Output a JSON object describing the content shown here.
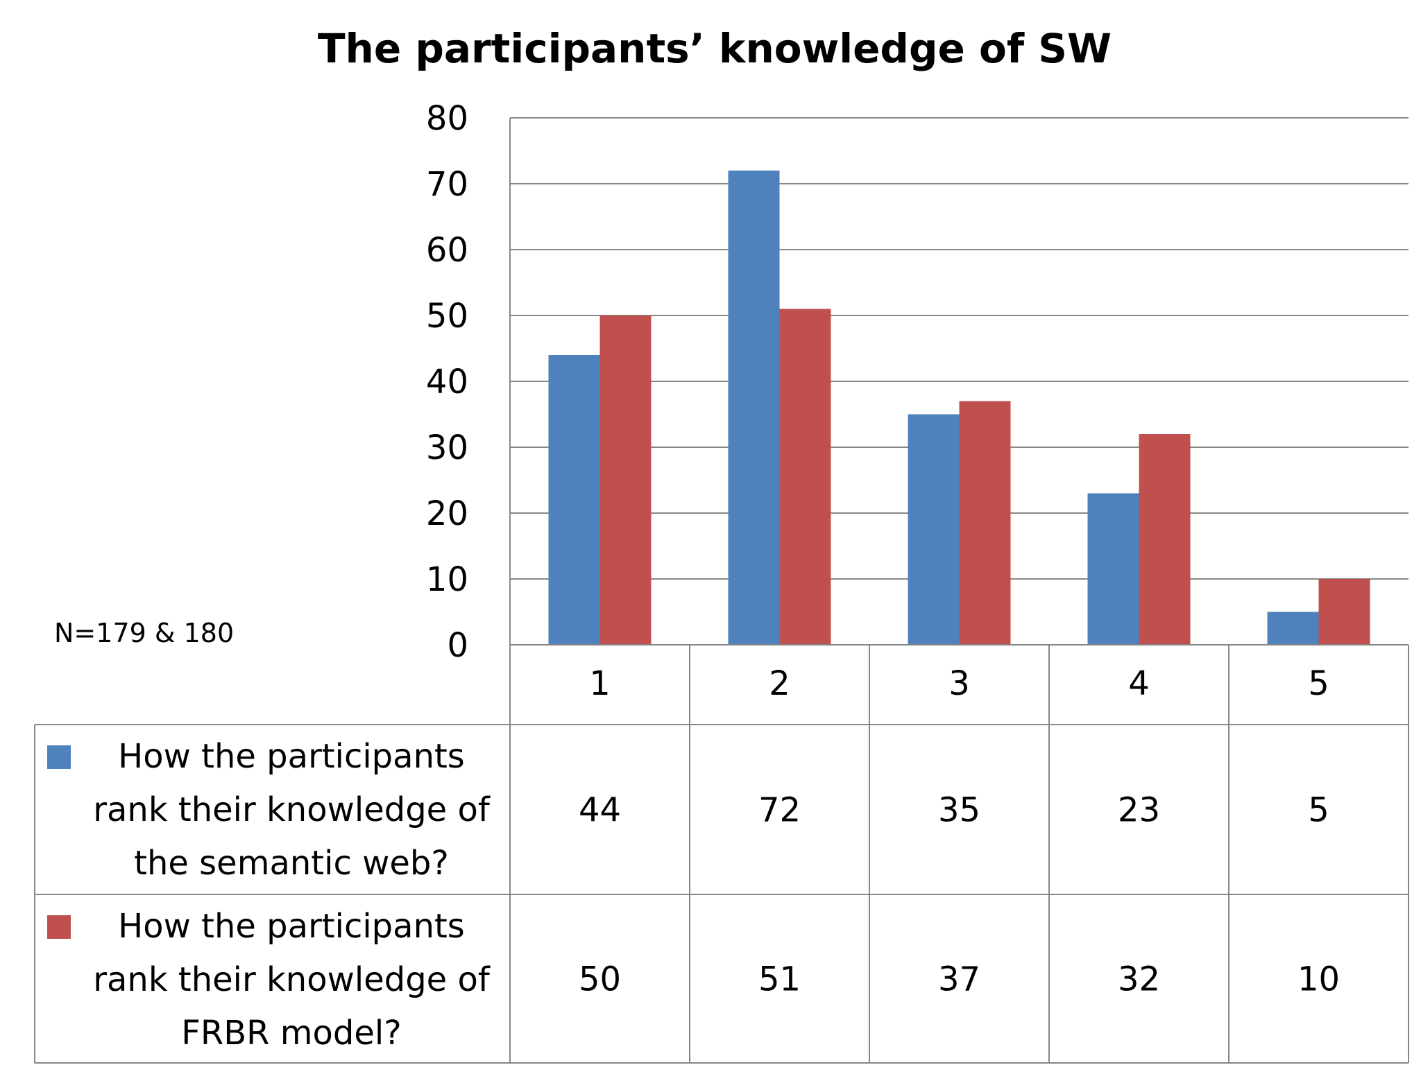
{
  "chart_data": {
    "type": "bar",
    "title": "The participants’ knowledge of SW",
    "note": "N=179 & 180",
    "categories": [
      "1",
      "2",
      "3",
      "4",
      "5"
    ],
    "series": [
      {
        "name": "How the participants rank their knowledge of the semantic web?",
        "name_lines": [
          "How the participants",
          "rank their knowledge of",
          "the semantic web?"
        ],
        "color": "#4F81BD",
        "values": [
          44,
          72,
          35,
          23,
          5
        ]
      },
      {
        "name": "How the participants rank their knowledge of FRBR model?",
        "name_lines": [
          "How the participants",
          "rank their knowledge of",
          "FRBR model?"
        ],
        "color": "#C0504D",
        "values": [
          50,
          51,
          37,
          32,
          10
        ]
      }
    ],
    "ylim": [
      0,
      80
    ],
    "yticks": [
      0,
      10,
      20,
      30,
      40,
      50,
      60,
      70,
      80
    ],
    "grid": true,
    "legend": "data-table"
  }
}
